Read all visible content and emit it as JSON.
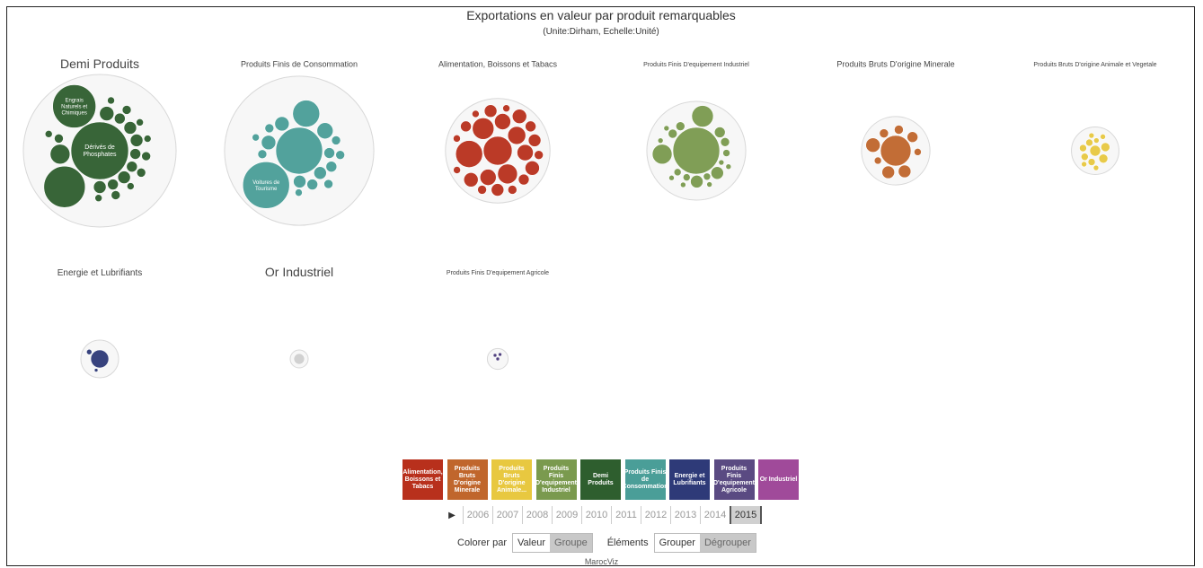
{
  "title": "Exportations en valeur par produit remarquables",
  "subtitle": "(Unite:Dirham, Echelle:Unité)",
  "chart_data": {
    "type": "bubble-groups",
    "groups": [
      {
        "name": "Demi Produits",
        "color": "#2e5e2e",
        "title_size": 14,
        "bubbles": [
          {
            "label": "Dérivés de Phosphates",
            "r": 32
          },
          {
            "label": "Engrais Naturels et Chimiques",
            "r": 24
          },
          {
            "label": "",
            "r": 23
          },
          {
            "label": "",
            "r": 11
          },
          {
            "label": "",
            "r": 8
          },
          {
            "label": "",
            "r": 7
          },
          {
            "label": "",
            "r": 7
          },
          {
            "label": "",
            "r": 7
          },
          {
            "label": "",
            "r": 7
          },
          {
            "label": "",
            "r": 6
          },
          {
            "label": "",
            "r": 6
          },
          {
            "label": "",
            "r": 6
          },
          {
            "label": "",
            "r": 6
          },
          {
            "label": "",
            "r": 5
          },
          {
            "label": "",
            "r": 5
          },
          {
            "label": "",
            "r": 5
          },
          {
            "label": "",
            "r": 5
          },
          {
            "label": "",
            "r": 5
          },
          {
            "label": "",
            "r": 4
          },
          {
            "label": "",
            "r": 4
          },
          {
            "label": "",
            "r": 4
          },
          {
            "label": "",
            "r": 4
          },
          {
            "label": "",
            "r": 4
          },
          {
            "label": "",
            "r": 4
          }
        ]
      },
      {
        "name": "Produits Finis de Consommation",
        "color": "#4a9e98",
        "title_size": 9,
        "bubbles": [
          {
            "label": "",
            "r": 26
          },
          {
            "label": "Voitures de Tourisme",
            "r": 26
          },
          {
            "label": "",
            "r": 15
          },
          {
            "label": "",
            "r": 9
          },
          {
            "label": "",
            "r": 8
          },
          {
            "label": "",
            "r": 8
          },
          {
            "label": "",
            "r": 7
          },
          {
            "label": "",
            "r": 7
          },
          {
            "label": "",
            "r": 6
          },
          {
            "label": "",
            "r": 6
          },
          {
            "label": "",
            "r": 6
          },
          {
            "label": "",
            "r": 5
          },
          {
            "label": "",
            "r": 5
          },
          {
            "label": "",
            "r": 5
          },
          {
            "label": "",
            "r": 5
          },
          {
            "label": "",
            "r": 5
          },
          {
            "label": "",
            "r": 4
          },
          {
            "label": "",
            "r": 4
          }
        ]
      },
      {
        "name": "Alimentation, Boissons et Tabacs",
        "color": "#b8301c",
        "title_size": 9,
        "bubbles": [
          {
            "label": "",
            "r": 16
          },
          {
            "label": "",
            "r": 15
          },
          {
            "label": "",
            "r": 12
          },
          {
            "label": "",
            "r": 11
          },
          {
            "label": "",
            "r": 10
          },
          {
            "label": "",
            "r": 9
          },
          {
            "label": "",
            "r": 9
          },
          {
            "label": "",
            "r": 9
          },
          {
            "label": "",
            "r": 8
          },
          {
            "label": "",
            "r": 8
          },
          {
            "label": "",
            "r": 8
          },
          {
            "label": "",
            "r": 7
          },
          {
            "label": "",
            "r": 7
          },
          {
            "label": "",
            "r": 7
          },
          {
            "label": "",
            "r": 6
          },
          {
            "label": "",
            "r": 6
          },
          {
            "label": "",
            "r": 6
          },
          {
            "label": "",
            "r": 5
          },
          {
            "label": "",
            "r": 5
          },
          {
            "label": "",
            "r": 5
          },
          {
            "label": "",
            "r": 4
          },
          {
            "label": "",
            "r": 4
          },
          {
            "label": "",
            "r": 4
          },
          {
            "label": "",
            "r": 4
          }
        ]
      },
      {
        "name": "Produits Finis D'equipement Industriel",
        "color": "#7a9a4e",
        "title_size": 7,
        "bubbles": [
          {
            "label": "",
            "r": 26
          },
          {
            "label": "",
            "r": 12
          },
          {
            "label": "",
            "r": 11
          },
          {
            "label": "",
            "r": 7
          },
          {
            "label": "",
            "r": 7
          },
          {
            "label": "",
            "r": 6
          },
          {
            "label": "",
            "r": 5
          },
          {
            "label": "",
            "r": 5
          },
          {
            "label": "",
            "r": 5
          },
          {
            "label": "",
            "r": 4
          },
          {
            "label": "",
            "r": 4
          },
          {
            "label": "",
            "r": 4
          },
          {
            "label": "",
            "r": 4
          },
          {
            "label": "",
            "r": 3
          },
          {
            "label": "",
            "r": 3
          },
          {
            "label": "",
            "r": 3
          },
          {
            "label": "",
            "r": 3
          },
          {
            "label": "",
            "r": 3
          },
          {
            "label": "",
            "r": 3
          },
          {
            "label": "",
            "r": 3
          }
        ]
      },
      {
        "name": "Produits Bruts D'origine Minerale",
        "color": "#c0662c",
        "title_size": 9,
        "bubbles": [
          {
            "label": "",
            "r": 17
          },
          {
            "label": "",
            "r": 8
          },
          {
            "label": "",
            "r": 7
          },
          {
            "label": "",
            "r": 7
          },
          {
            "label": "",
            "r": 6
          },
          {
            "label": "",
            "r": 5
          },
          {
            "label": "",
            "r": 5
          },
          {
            "label": "",
            "r": 4
          },
          {
            "label": "",
            "r": 4
          }
        ]
      },
      {
        "name": "Produits Bruts D'origine Animale et Vegetale",
        "color": "#e8c840",
        "title_size": 7,
        "bubbles": [
          {
            "label": "",
            "r": 6
          },
          {
            "label": "",
            "r": 5
          },
          {
            "label": "",
            "r": 5
          },
          {
            "label": "",
            "r": 4
          },
          {
            "label": "",
            "r": 4
          },
          {
            "label": "",
            "r": 4
          },
          {
            "label": "",
            "r": 4
          },
          {
            "label": "",
            "r": 3
          },
          {
            "label": "",
            "r": 3
          },
          {
            "label": "",
            "r": 3
          },
          {
            "label": "",
            "r": 3
          },
          {
            "label": "",
            "r": 3
          }
        ]
      },
      {
        "name": "Energie et Lubrifiants",
        "color": "#2e3a78",
        "title_size": 10,
        "bubbles": [
          {
            "label": "",
            "r": 10
          },
          {
            "label": "",
            "r": 3
          },
          {
            "label": "",
            "r": 2
          }
        ]
      },
      {
        "name": "Or Industriel",
        "color": "#d0d0d0",
        "title_size": 14,
        "bubbles": [
          {
            "label": "",
            "r": 6
          }
        ]
      },
      {
        "name": "Produits Finis D'equipement Agricole",
        "color": "#4a3a7a",
        "title_size": 7,
        "bubbles": [
          {
            "label": "",
            "r": 2
          },
          {
            "label": "",
            "r": 2
          },
          {
            "label": "",
            "r": 2
          }
        ]
      }
    ]
  },
  "legend": [
    {
      "label": "Alimentation, Boissons et Tabacs",
      "color": "#b8301c"
    },
    {
      "label": "Produits Bruts D'origine Minerale",
      "color": "#c0662c"
    },
    {
      "label": "Produits Bruts D'origine Animale...",
      "color": "#e8c840"
    },
    {
      "label": "Produits Finis D'equipement Industriel",
      "color": "#7a9a4e"
    },
    {
      "label": "Demi Produits",
      "color": "#2e5e2e"
    },
    {
      "label": "Produits Finis de Consommation",
      "color": "#4a9e98"
    },
    {
      "label": "Energie et Lubrifiants",
      "color": "#2e3a78"
    },
    {
      "label": "Produits Finis D'equipement Agricole",
      "color": "#5a4a82"
    },
    {
      "label": "Or Industriel",
      "color": "#a04a9a"
    }
  ],
  "timeline": {
    "play_icon": "▶",
    "years": [
      "2006",
      "2007",
      "2008",
      "2009",
      "2010",
      "2011",
      "2012",
      "2013",
      "2014",
      "2015"
    ],
    "active": "2015"
  },
  "controls": {
    "color_label": "Colorer par",
    "color_options": [
      "Valeur",
      "Groupe"
    ],
    "elements_label": "Éléments",
    "elements_options": [
      "Grouper",
      "Dégrouper"
    ]
  },
  "footer": "MarocViz"
}
